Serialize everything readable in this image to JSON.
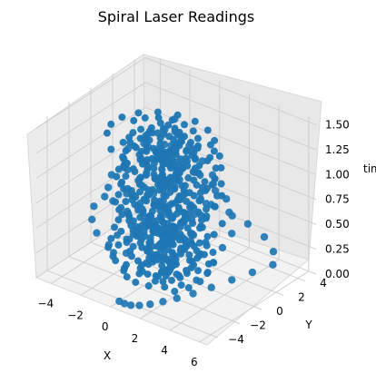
{
  "chart_data": {
    "type": "scatter",
    "projection": "3d",
    "title": "Spiral Laser Readings",
    "xlabel": "X",
    "ylabel": "Y",
    "zlabel": "time",
    "x_ticks": [
      "−4",
      "−2",
      "0",
      "2",
      "4",
      "6"
    ],
    "y_ticks": [
      "−4",
      "−2",
      "0",
      "2",
      "4"
    ],
    "z_ticks": [
      "0.00",
      "0.25",
      "0.50",
      "0.75",
      "1.00",
      "1.25",
      "1.50"
    ],
    "xlim": [
      -5,
      6.5
    ],
    "ylim": [
      -5,
      5
    ],
    "zlim": [
      0,
      1.55
    ],
    "grid": true,
    "color": "#1f77b4",
    "series": [
      {
        "description_of_values": "points on spiral laser scan",
        "x": [
          0.0,
          0.5,
          1.0,
          1.5,
          2.0,
          2.5,
          3.0,
          3.5,
          4.0,
          4.5,
          5.0,
          5.5,
          4.8,
          3.6,
          2.2,
          0.8,
          -0.6,
          -2.0,
          -3.2,
          -4.2,
          -4.8,
          -4.5,
          -3.6,
          -2.4,
          -1.0,
          0.4,
          1.8,
          3.0,
          4.0,
          4.6,
          4.2,
          3.2,
          2.0,
          0.6,
          -0.8,
          -2.2,
          -3.2,
          -3.8,
          -3.6,
          -2.8,
          -1.6,
          -0.2,
          1.2,
          2.4,
          3.2,
          3.4,
          2.8,
          1.8,
          0.6,
          -0.6,
          -1.8,
          -2.6,
          -2.8,
          -2.2,
          -1.2,
          0.0,
          1.2,
          2.0,
          2.2,
          1.6,
          0.6,
          -0.4,
          -1.2,
          -1.6,
          -1.2,
          -0.4,
          0.4,
          1.0,
          0.8,
          0.2
        ],
        "y": [
          -4.2,
          -4.4,
          -4.5,
          -4.4,
          -4.1,
          -3.6,
          -3.0,
          -2.2,
          -1.2,
          0.0,
          1.2,
          2.4,
          3.4,
          4.2,
          4.6,
          4.8,
          4.6,
          4.1,
          3.3,
          2.2,
          1.0,
          -0.4,
          -1.8,
          -3.0,
          -3.8,
          -4.1,
          -3.9,
          -3.3,
          -2.3,
          -1.0,
          0.4,
          1.8,
          2.9,
          3.6,
          3.8,
          3.4,
          2.6,
          1.4,
          0.0,
          -1.4,
          -2.6,
          -3.2,
          -3.2,
          -2.6,
          -1.6,
          -0.4,
          0.8,
          1.9,
          2.6,
          2.8,
          2.4,
          1.6,
          0.4,
          -0.8,
          -1.8,
          -2.3,
          -2.1,
          -1.4,
          -0.4,
          0.6,
          1.4,
          1.8,
          1.6,
          0.8,
          -0.2,
          -1.0,
          -1.2,
          -0.8,
          0.0,
          0.6
        ],
        "z": [
          0.0,
          0.02,
          0.04,
          0.06,
          0.08,
          0.1,
          0.12,
          0.14,
          0.16,
          0.18,
          0.2,
          0.22,
          0.24,
          0.26,
          0.28,
          0.3,
          0.32,
          0.34,
          0.36,
          0.38,
          0.4,
          0.42,
          0.44,
          0.46,
          0.48,
          0.5,
          0.52,
          0.54,
          0.56,
          0.58,
          0.6,
          0.62,
          0.64,
          0.66,
          0.68,
          0.7,
          0.72,
          0.74,
          0.76,
          0.78,
          0.8,
          0.82,
          0.84,
          0.86,
          0.88,
          0.9,
          0.92,
          0.94,
          0.96,
          0.98,
          1.0,
          1.02,
          1.04,
          1.06,
          1.08,
          1.1,
          1.12,
          1.14,
          1.16,
          1.18,
          1.2,
          1.22,
          1.24,
          1.26,
          1.28,
          1.3,
          1.34,
          1.38,
          1.44,
          1.5
        ]
      }
    ]
  }
}
